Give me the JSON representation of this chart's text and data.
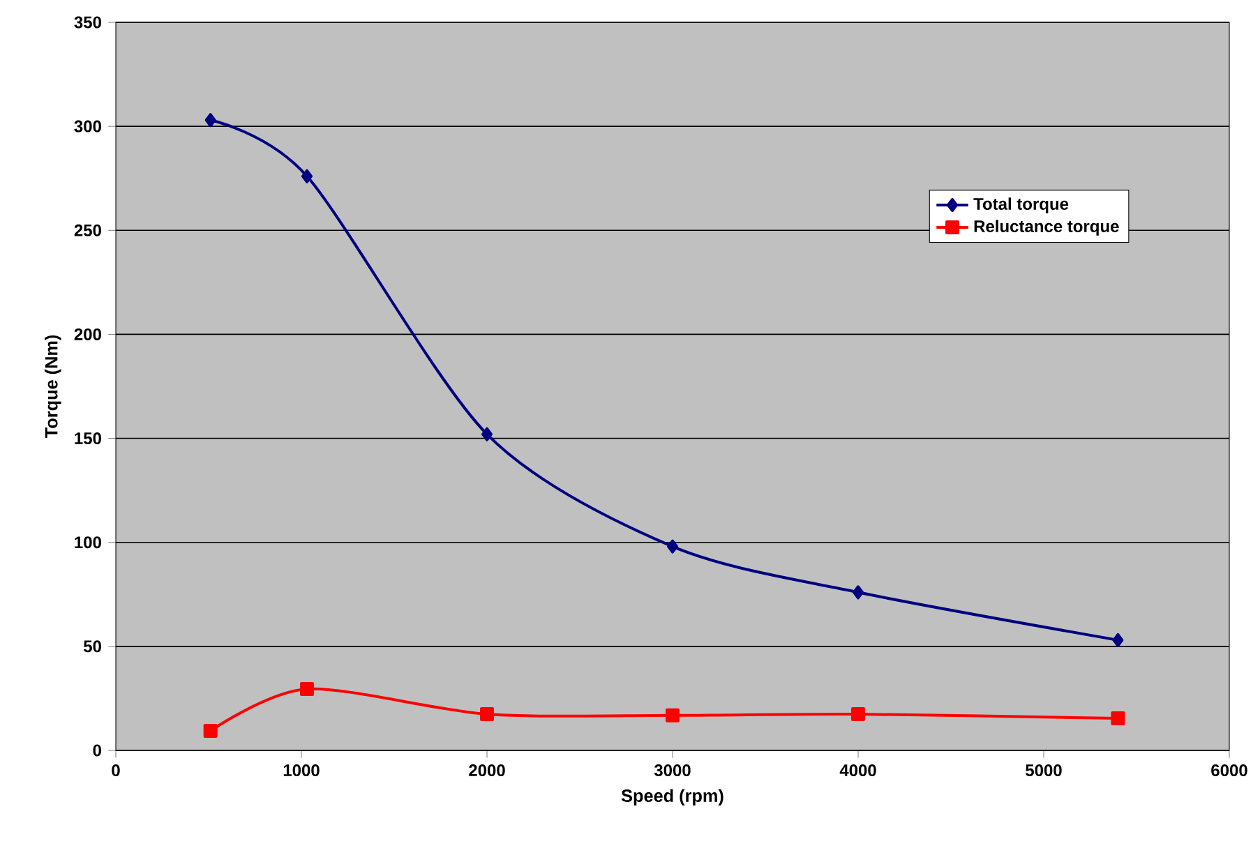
{
  "chart_data": {
    "type": "line",
    "xlabel": "Speed (rpm)",
    "ylabel": "Torque (Nm)",
    "xlim": [
      0,
      6000
    ],
    "xticks": [
      0,
      1000,
      2000,
      3000,
      4000,
      5000,
      6000
    ],
    "ylim": [
      0,
      350
    ],
    "yticks": [
      0,
      50,
      100,
      150,
      200,
      250,
      300,
      350
    ],
    "grid": "y",
    "legend": "right",
    "series": [
      {
        "name": "Total torque",
        "color": "#000080",
        "marker": "diamond",
        "x": [
          510,
          1030,
          2000,
          3000,
          4000,
          5400
        ],
        "values": [
          303,
          276,
          152,
          98,
          76,
          53
        ]
      },
      {
        "name": "Reluctance torque",
        "color": "#ff0000",
        "marker": "square",
        "x": [
          510,
          1030,
          2000,
          3000,
          4000,
          5400
        ],
        "values": [
          9.4,
          29.5,
          17.4,
          16.8,
          17.4,
          15.4
        ]
      }
    ]
  }
}
